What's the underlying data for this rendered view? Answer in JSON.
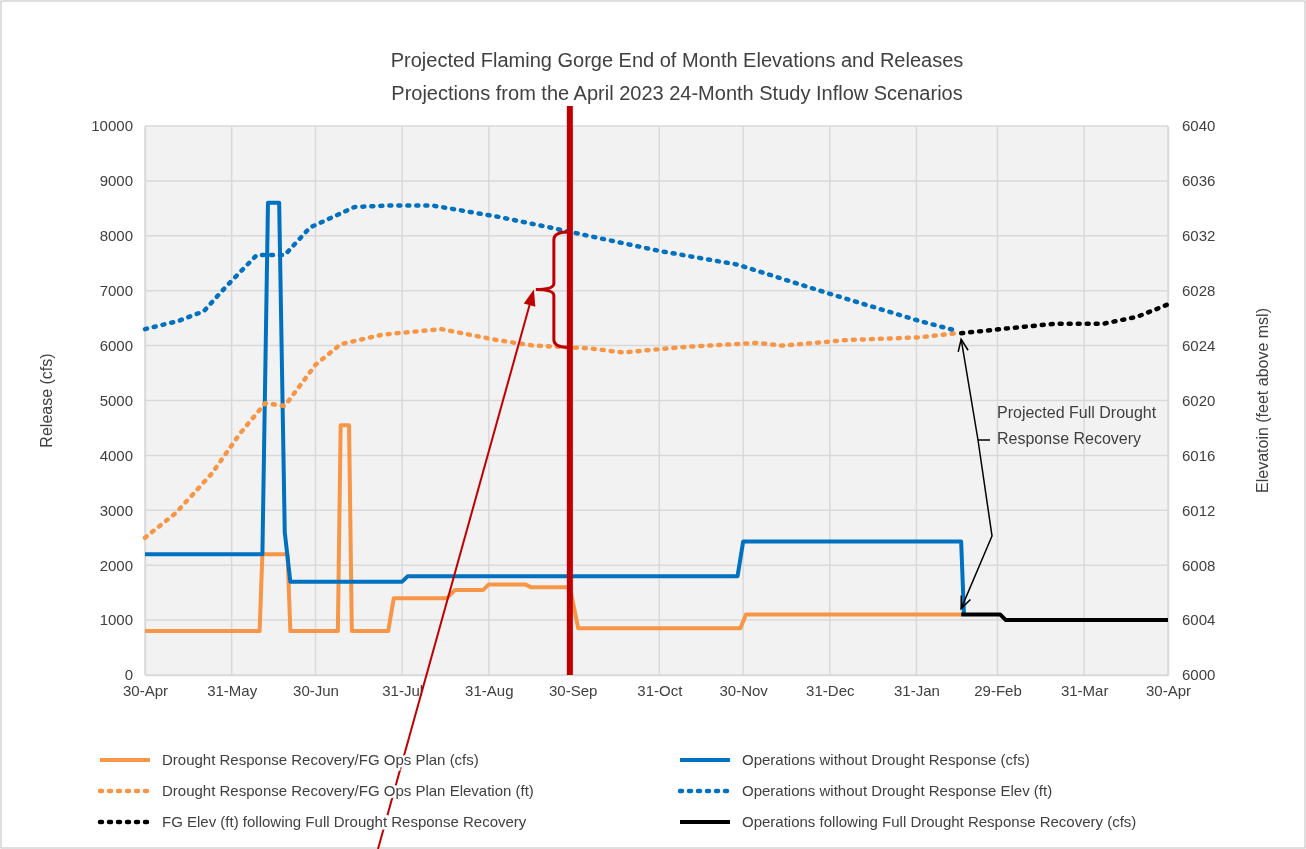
{
  "chart_data": {
    "type": "line",
    "title": "Projected Flaming Gorge End of Month Elevations and Releases",
    "subtitle": "Projections from the April 2023 24-Month Study Inflow Scenarios",
    "ylabel": "Release (cfs)",
    "y2label": "Elevatoin (feet above msl)",
    "xlim": [
      "2023-04-30",
      "2024-04-30"
    ],
    "xticks": [
      {
        "value": "2023-04-30",
        "label": "30-Apr"
      },
      {
        "value": "2023-05-31",
        "label": "31-May"
      },
      {
        "value": "2023-06-30",
        "label": "30-Jun"
      },
      {
        "value": "2023-07-31",
        "label": "31-Jul"
      },
      {
        "value": "2023-08-31",
        "label": "31-Aug"
      },
      {
        "value": "2023-09-30",
        "label": "30-Sep"
      },
      {
        "value": "2023-10-31",
        "label": "31-Oct"
      },
      {
        "value": "2023-11-30",
        "label": "30-Nov"
      },
      {
        "value": "2023-12-31",
        "label": "31-Dec"
      },
      {
        "value": "2024-01-31",
        "label": "31-Jan"
      },
      {
        "value": "2024-02-29",
        "label": "29-Feb"
      },
      {
        "value": "2024-03-31",
        "label": "31-Mar"
      },
      {
        "value": "2024-04-30",
        "label": "30-Apr"
      }
    ],
    "ylim": [
      0,
      10000
    ],
    "yticks": [
      0,
      1000,
      2000,
      3000,
      4000,
      5000,
      6000,
      7000,
      8000,
      9000,
      10000
    ],
    "y2lim": [
      6000,
      6040
    ],
    "y2ticks": [
      6000,
      6004,
      6008,
      6012,
      6016,
      6020,
      6024,
      6028,
      6032,
      6036,
      6040
    ],
    "grid": true,
    "legend": "bottom",
    "series": [
      {
        "name": "Drought Response Recovery/FG Ops Plan (cfs)",
        "color": "#f79646",
        "line_style": "solid",
        "x": [
          "2023-04-30",
          "2023-06-10",
          "2023-06-11",
          "2023-06-20",
          "2023-06-21",
          "2023-07-08",
          "2023-07-09",
          "2023-07-12",
          "2023-07-13",
          "2023-07-26",
          "2023-07-28",
          "2023-08-16",
          "2023-08-19",
          "2023-08-29",
          "2023-08-31",
          "2023-09-13",
          "2023-09-15",
          "2023-09-29",
          "2023-10-02",
          "2023-11-29",
          "2023-12-01",
          "2024-02-16"
        ],
        "values": [
          800,
          800,
          2200,
          2200,
          800,
          800,
          4550,
          4550,
          800,
          800,
          1400,
          1400,
          1550,
          1550,
          1650,
          1650,
          1600,
          1600,
          850,
          850,
          1100,
          1100
        ]
      },
      {
        "name": "Operations without Drought Response (cfs)",
        "color": "#0070c0",
        "line_style": "solid",
        "x": [
          "2023-04-30",
          "2023-06-11",
          "2023-06-13",
          "2023-06-17",
          "2023-06-19",
          "2023-06-21",
          "2023-07-31",
          "2023-08-02",
          "2023-11-28",
          "2023-11-30",
          "2024-02-16",
          "2024-02-17"
        ],
        "values": [
          2200,
          2200,
          8600,
          8600,
          2600,
          1700,
          1700,
          1800,
          1800,
          2430,
          2430,
          1100
        ]
      },
      {
        "name": "Drought Response Recovery/FG Ops Plan Elevation (ft)",
        "color": "#f79646",
        "line_style": "dotted",
        "axis": "y2",
        "x": [
          "2023-04-30",
          "2023-05-11",
          "2023-05-24",
          "2023-06-03",
          "2023-06-12",
          "2023-06-19",
          "2023-06-30",
          "2023-07-09",
          "2023-07-24",
          "2023-08-14",
          "2023-09-03",
          "2023-09-16",
          "2023-10-06",
          "2023-10-18",
          "2023-11-09",
          "2023-12-05",
          "2023-12-14",
          "2024-01-06",
          "2024-02-01",
          "2024-02-14"
        ],
        "values": [
          6010.0,
          6011.8,
          6014.7,
          6017.6,
          6019.8,
          6019.6,
          6022.6,
          6024.1,
          6024.8,
          6025.2,
          6024.4,
          6024.0,
          6023.8,
          6023.5,
          6023.9,
          6024.2,
          6024.0,
          6024.4,
          6024.6,
          6024.9
        ]
      },
      {
        "name": "Operations without Drought Response Elev (ft)",
        "color": "#0070c0",
        "line_style": "dotted",
        "axis": "y2",
        "x": [
          "2023-04-30",
          "2023-05-12",
          "2023-05-21",
          "2023-05-29",
          "2023-06-09",
          "2023-06-19",
          "2023-06-28",
          "2023-07-14",
          "2023-07-26",
          "2023-08-11",
          "2023-09-03",
          "2023-09-22",
          "2023-10-01",
          "2023-10-31",
          "2023-11-28",
          "2023-12-29",
          "2024-02-01",
          "2024-02-14"
        ],
        "values": [
          6025.2,
          6025.8,
          6026.5,
          6028.3,
          6030.6,
          6030.6,
          6032.6,
          6034.1,
          6034.2,
          6034.2,
          6033.4,
          6032.6,
          6032.2,
          6030.9,
          6029.9,
          6027.9,
          6025.8,
          6025.1
        ]
      },
      {
        "name": "FG Elev (ft) following Full Drought Response Recovery",
        "color": "#000000",
        "line_style": "dotted",
        "axis": "y2",
        "x": [
          "2024-02-16",
          "2024-03-01",
          "2024-03-21",
          "2024-04-07",
          "2024-04-19",
          "2024-04-30"
        ],
        "values": [
          6024.9,
          6025.2,
          6025.6,
          6025.6,
          6026.1,
          6027.0
        ]
      },
      {
        "name": "Operations following Full Drought Response Recovery (cfs)",
        "color": "#000000",
        "line_style": "solid",
        "x": [
          "2024-02-16",
          "2024-03-01",
          "2024-03-03",
          "2024-04-30"
        ],
        "values": [
          1100,
          1100,
          1000,
          1000
        ]
      }
    ],
    "ref_lines": [
      {
        "axis": "x",
        "value": "2023-09-29",
        "color": "#c00000"
      }
    ],
    "annotations": [
      {
        "text": "Projected Full Drought Response Recovery",
        "x": "2024-02-16",
        "y": 1100
      }
    ]
  }
}
